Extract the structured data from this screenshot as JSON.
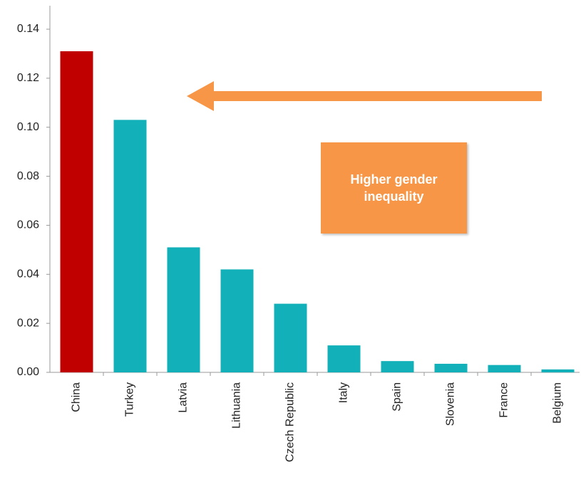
{
  "chart_data": {
    "type": "bar",
    "categories": [
      "China",
      "Turkey",
      "Latvia",
      "Lithuania",
      "Czech Republic",
      "Italy",
      "Spain",
      "Slovenia",
      "France",
      "Belgium"
    ],
    "values": [
      0.131,
      0.103,
      0.051,
      0.042,
      0.028,
      0.011,
      0.0046,
      0.0035,
      0.003,
      0.0012
    ],
    "colors": [
      "#c00000",
      "#12b0b8",
      "#12b0b8",
      "#12b0b8",
      "#12b0b8",
      "#12b0b8",
      "#12b0b8",
      "#12b0b8",
      "#12b0b8",
      "#12b0b8"
    ],
    "ylim": [
      0,
      0.14
    ],
    "yticks": [
      {
        "value": 0,
        "label": "0.00"
      },
      {
        "value": 0.02,
        "label": "0.02"
      },
      {
        "value": 0.04,
        "label": "0.04"
      },
      {
        "value": 0.06,
        "label": "0.06"
      },
      {
        "value": 0.08,
        "label": "0.08"
      },
      {
        "value": 0.1,
        "label": "0.10"
      },
      {
        "value": 0.12,
        "label": "0.12"
      },
      {
        "value": 0.14,
        "label": "0.14"
      }
    ],
    "annotation": "Higher gender inequality"
  }
}
